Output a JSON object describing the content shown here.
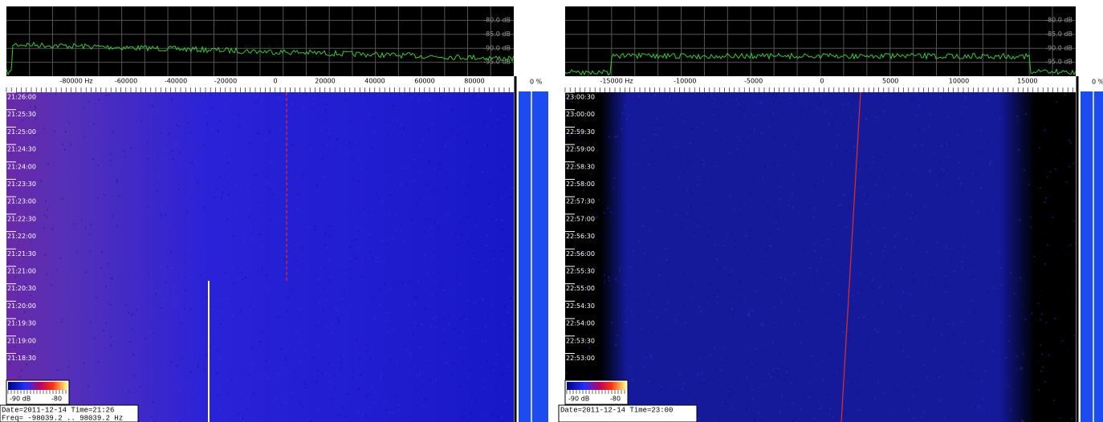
{
  "panels": [
    {
      "db_labels": [
        "-80.0 dB",
        "-85.0 dB",
        "-90.0 dB",
        "-95.0 dB"
      ],
      "freq_labels": [
        "-80000 Hz",
        "-60000",
        "-40000",
        "-20000",
        "0",
        "20000",
        "40000",
        "60000",
        "80000"
      ],
      "time_labels": [
        "21:26:00",
        "21:25:30",
        "21:25:00",
        "21:24:30",
        "21:24:00",
        "21:23:30",
        "21:23:00",
        "21:22:30",
        "21:22:00",
        "21:21:30",
        "21:21:00",
        "21:20:30",
        "21:20:00",
        "21:19:30",
        "21:19:00",
        "21:18:30"
      ],
      "colorbar_labels": [
        "-90 dB",
        "-80"
      ],
      "status": [
        "Date=2011-12-14 Time=21:26",
        "Freq= -98039.2 .. 98039.2 Hz"
      ],
      "meter": "0 %"
    },
    {
      "db_labels": [
        "-80.0 dB",
        "-85.0 dB",
        "-90.0 dB",
        "-95.0 dB"
      ],
      "freq_labels": [
        "-15000 Hz",
        "-10000",
        "-5000",
        "0",
        "5000",
        "10000",
        "15000"
      ],
      "time_labels": [
        "23:00:30",
        "23:00:00",
        "22:59:30",
        "22:59:00",
        "22:58:30",
        "22:58:00",
        "22:57:30",
        "22:57:00",
        "22:56:30",
        "22:56:00",
        "22:55:30",
        "22:55:00",
        "22:54:30",
        "22:54:00",
        "22:53:30",
        "22:53:00"
      ],
      "colorbar_labels": [
        "-90 dB",
        "-80"
      ],
      "status": [
        "Date=2011-12-14 Time=23:00"
      ],
      "meter": "0 %"
    }
  ]
}
